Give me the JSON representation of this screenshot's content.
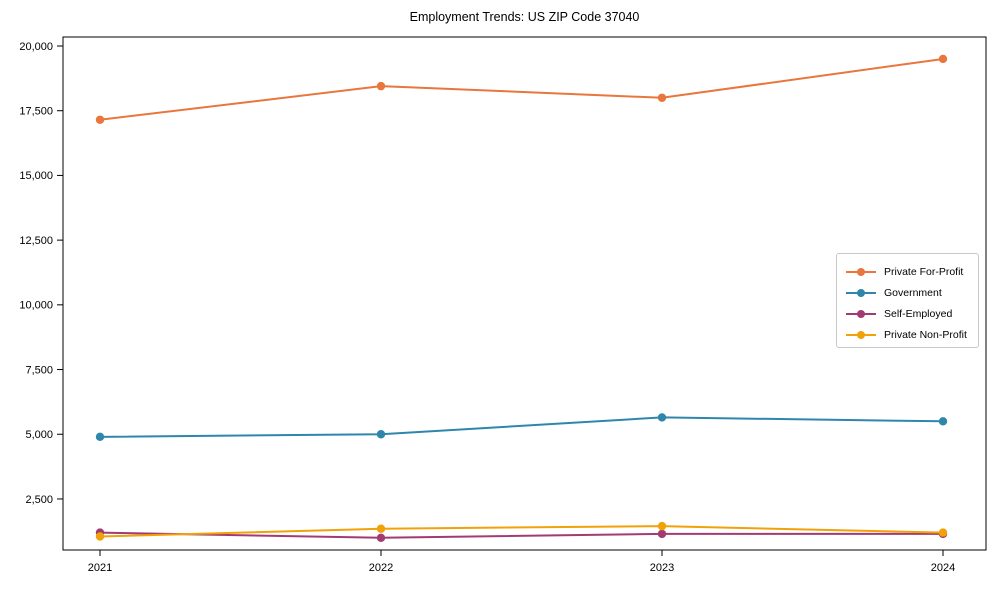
{
  "title": "Employment Trends: US ZIP Code 37040",
  "chart_data": {
    "type": "line",
    "title": "Employment Trends: US ZIP Code 37040",
    "xlabel": "",
    "ylabel": "",
    "x": [
      "2021",
      "2022",
      "2023",
      "2024"
    ],
    "series": [
      {
        "name": "Private For-Profit",
        "color": "#E8763D",
        "values": [
          17150,
          18450,
          18000,
          19500
        ]
      },
      {
        "name": "Government",
        "color": "#2E86AB",
        "values": [
          4900,
          5000,
          5650,
          5500
        ]
      },
      {
        "name": "Self-Employed",
        "color": "#A23B72",
        "values": [
          1200,
          1000,
          1150,
          1150
        ]
      },
      {
        "name": "Private Non-Profit",
        "color": "#F1A208",
        "values": [
          1050,
          1350,
          1450,
          1200
        ]
      }
    ],
    "yticks": [
      2500,
      5000,
      7500,
      10000,
      12500,
      15000,
      17500,
      20000
    ],
    "ylim": [
      528,
      20348
    ],
    "grid": false,
    "legend_position": "center-right",
    "marker": "circle",
    "frame": "full-box",
    "axis_color": "#000000",
    "tick_label_color": "#000000"
  }
}
